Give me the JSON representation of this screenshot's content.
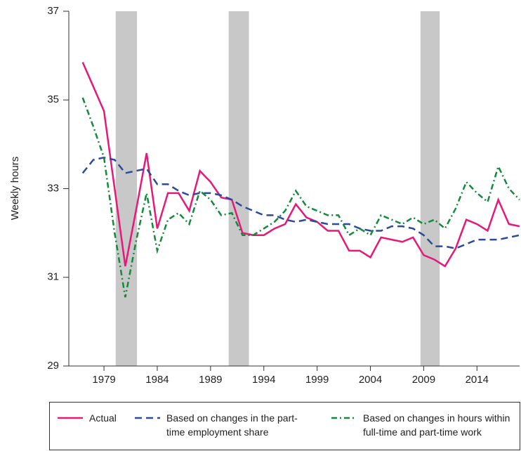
{
  "chart_data": {
    "type": "line",
    "y_label": "Weekly hours",
    "x": [
      1977,
      1978,
      1979,
      1980,
      1981,
      1982,
      1983,
      1984,
      1985,
      1986,
      1987,
      1988,
      1989,
      1990,
      1991,
      1992,
      1993,
      1994,
      1995,
      1996,
      1997,
      1998,
      1999,
      2000,
      2001,
      2002,
      2003,
      2004,
      2005,
      2006,
      2007,
      2008,
      2009,
      2010,
      2011,
      2012,
      2013,
      2014,
      2015,
      2016,
      2017,
      2018
    ],
    "series": [
      {
        "name": "Actual",
        "color": "#e6197a",
        "dash": "solid",
        "values": [
          35.85,
          35.3,
          34.75,
          33.0,
          31.25,
          32.5,
          33.8,
          32.1,
          32.9,
          32.9,
          32.5,
          33.4,
          33.15,
          32.8,
          32.75,
          32.0,
          31.95,
          31.95,
          32.1,
          32.2,
          32.65,
          32.35,
          32.25,
          32.05,
          32.05,
          31.6,
          31.6,
          31.45,
          31.9,
          31.85,
          31.8,
          31.9,
          31.5,
          31.4,
          31.25,
          31.65,
          32.3,
          32.2,
          32.05,
          32.75,
          32.2,
          32.15
        ]
      },
      {
        "name": "Based on changes in the part-time employment share",
        "color": "#2b4b9b",
        "dash": "dashed",
        "values": [
          33.35,
          33.65,
          33.7,
          33.65,
          33.35,
          33.4,
          33.45,
          33.1,
          33.1,
          32.95,
          32.85,
          32.9,
          32.9,
          32.85,
          32.75,
          32.6,
          32.5,
          32.4,
          32.4,
          32.3,
          32.25,
          32.3,
          32.25,
          32.2,
          32.2,
          32.2,
          32.1,
          32.05,
          32.05,
          32.15,
          32.15,
          32.1,
          31.95,
          31.7,
          31.7,
          31.65,
          31.75,
          31.85,
          31.85,
          31.85,
          31.9,
          31.95
        ]
      },
      {
        "name": "Based on changes in hours within full-time and part-time work",
        "color": "#138a3c",
        "dash": "dashdot",
        "values": [
          35.05,
          34.4,
          33.7,
          32.0,
          30.55,
          31.8,
          32.9,
          31.6,
          32.3,
          32.45,
          32.2,
          32.95,
          32.75,
          32.4,
          32.45,
          31.95,
          31.95,
          32.1,
          32.25,
          32.5,
          32.95,
          32.6,
          32.5,
          32.4,
          32.4,
          31.95,
          32.1,
          31.95,
          32.4,
          32.3,
          32.2,
          32.35,
          32.2,
          32.3,
          32.1,
          32.55,
          33.15,
          32.9,
          32.7,
          33.5,
          33.0,
          32.75
        ]
      }
    ],
    "shaded_periods": [
      [
        1980.1,
        1982.1
      ],
      [
        1990.7,
        1992.6
      ],
      [
        2008.7,
        2010.5
      ]
    ],
    "shade_color": "#c8c8c8",
    "xlim": [
      1975.7,
      2018
    ],
    "xticks": [
      1979,
      1984,
      1989,
      1994,
      1999,
      2004,
      2009,
      2014
    ],
    "ylim": [
      29,
      37
    ],
    "yticks": [
      29,
      31,
      33,
      35,
      37
    ],
    "grid": false
  }
}
